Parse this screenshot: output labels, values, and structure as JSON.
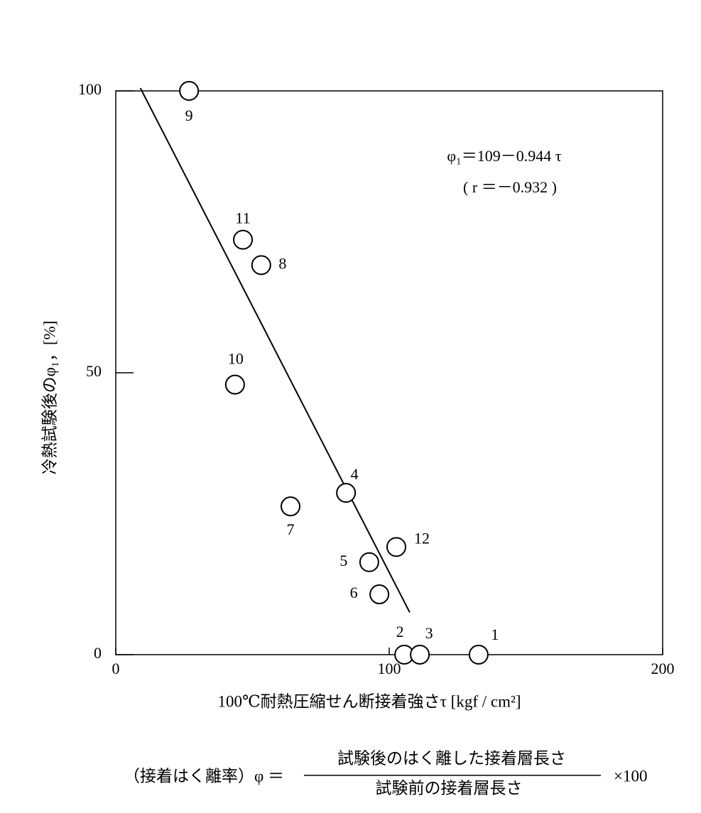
{
  "chart_data": {
    "type": "scatter",
    "xlabel": "100℃耐熱圧縮せん断接着強さτ [kgf / cm²]",
    "ylabel": "冷熱試験後のφ₁，[%]",
    "xlim": [
      0,
      200
    ],
    "ylim": [
      0,
      100
    ],
    "xticks": [
      0,
      100,
      200
    ],
    "yticks": [
      0,
      50,
      100
    ],
    "x": [
      132.7,
      105.5,
      111.2,
      84.2,
      92.7,
      96.4,
      63.9,
      53.2,
      26.8,
      43.6,
      46.5,
      102.6
    ],
    "values": [
      0,
      0,
      0,
      28.7,
      16.4,
      10.7,
      26.3,
      69.1,
      100,
      47.9,
      73.6,
      19.1
    ],
    "point_labels": [
      "1",
      "2",
      "3",
      "4",
      "5",
      "6",
      "7",
      "8",
      "9",
      "10",
      "11",
      "12"
    ],
    "fit_line": {
      "x": [
        9,
        107.5
      ],
      "y": [
        100.5,
        7.5
      ]
    },
    "annotations": [
      "φ₁＝109－0.944 τ",
      "( r ＝－0.932 )"
    ],
    "formula": {
      "left": "（接着はく離率）φ ＝",
      "numerator": "試験後のはく離した接着層長さ",
      "denominator": "試験前の接着層長さ",
      "right": "×100"
    }
  }
}
